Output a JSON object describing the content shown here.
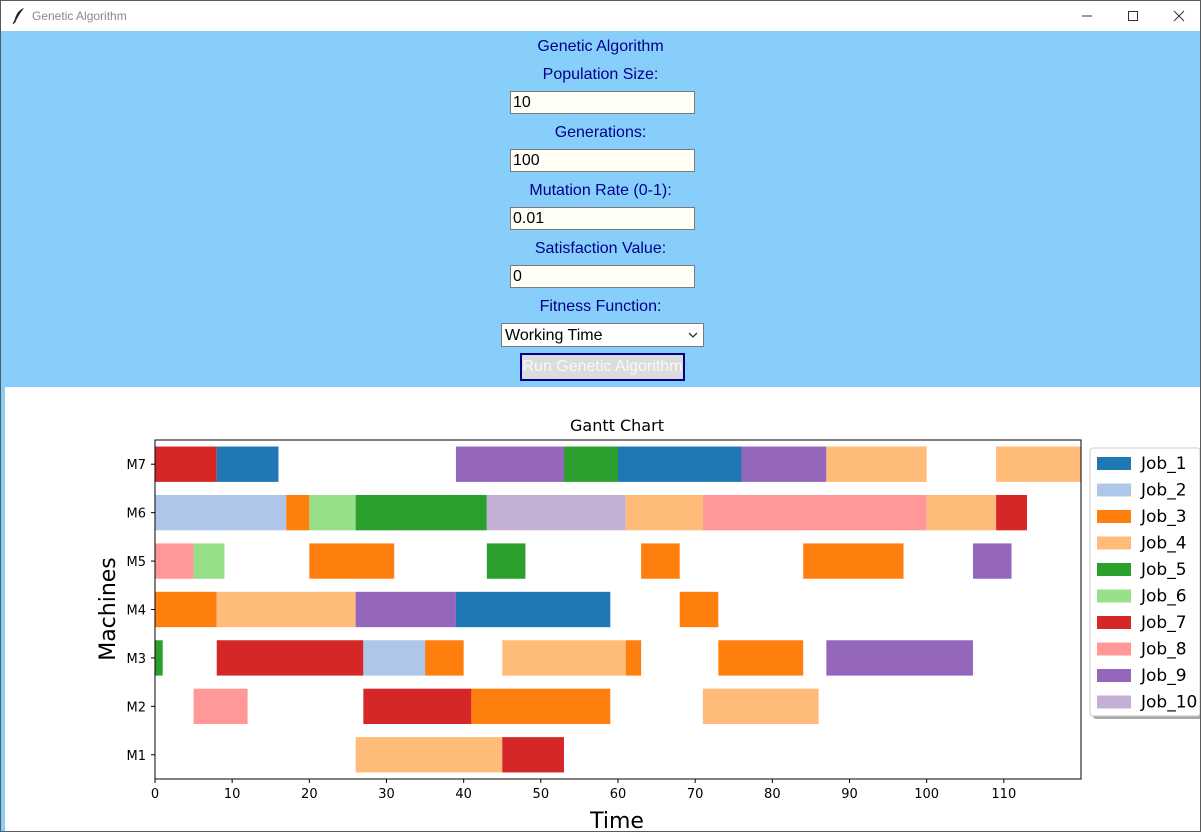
{
  "window": {
    "title": "Genetic Algorithm",
    "icon": "feather-icon"
  },
  "form": {
    "header": "Genetic Algorithm",
    "population_label": "Population Size:",
    "population_value": "10",
    "generations_label": "Generations:",
    "generations_value": "100",
    "mutation_label": "Mutation Rate (0-1):",
    "mutation_value": "0.01",
    "satisfaction_label": "Satisfaction Value:",
    "satisfaction_value": "0",
    "fitness_label": "Fitness Function:",
    "fitness_value": "Working Time",
    "run_label": "Run Genetic Algorithm",
    "background": "#87cefa",
    "label_color": "#00008b"
  },
  "chart_data": {
    "type": "gantt",
    "title": "Gantt Chart",
    "xlabel": "Time",
    "ylabel": "Machines",
    "xlim": [
      0,
      120
    ],
    "xticks": [
      0,
      10,
      20,
      30,
      40,
      50,
      60,
      70,
      80,
      90,
      100,
      110
    ],
    "machines": [
      "M1",
      "M2",
      "M3",
      "M4",
      "M5",
      "M6",
      "M7"
    ],
    "legend_position": "right",
    "jobs": [
      {
        "name": "Job_1",
        "color": "#1f77b4"
      },
      {
        "name": "Job_2",
        "color": "#aec7e8"
      },
      {
        "name": "Job_3",
        "color": "#ff7f0e"
      },
      {
        "name": "Job_4",
        "color": "#ffbb78"
      },
      {
        "name": "Job_5",
        "color": "#2ca02c"
      },
      {
        "name": "Job_6",
        "color": "#98df8a"
      },
      {
        "name": "Job_7",
        "color": "#d62728"
      },
      {
        "name": "Job_8",
        "color": "#ff9896"
      },
      {
        "name": "Job_9",
        "color": "#9467bd"
      },
      {
        "name": "Job_10",
        "color": "#c5b0d5"
      }
    ],
    "tasks": [
      {
        "machine": "M7",
        "job": "Job_7",
        "start": 0,
        "end": 8
      },
      {
        "machine": "M7",
        "job": "Job_1",
        "start": 8,
        "end": 16
      },
      {
        "machine": "M7",
        "job": "Job_9",
        "start": 39,
        "end": 53
      },
      {
        "machine": "M7",
        "job": "Job_5",
        "start": 53,
        "end": 60
      },
      {
        "machine": "M7",
        "job": "Job_1",
        "start": 60,
        "end": 76
      },
      {
        "machine": "M7",
        "job": "Job_9",
        "start": 76,
        "end": 87
      },
      {
        "machine": "M7",
        "job": "Job_4",
        "start": 87,
        "end": 100
      },
      {
        "machine": "M7",
        "job": "Job_4",
        "start": 109,
        "end": 120
      },
      {
        "machine": "M6",
        "job": "Job_2",
        "start": 0,
        "end": 17
      },
      {
        "machine": "M6",
        "job": "Job_3",
        "start": 17,
        "end": 20
      },
      {
        "machine": "M6",
        "job": "Job_6",
        "start": 20,
        "end": 26
      },
      {
        "machine": "M6",
        "job": "Job_5",
        "start": 26,
        "end": 43
      },
      {
        "machine": "M6",
        "job": "Job_10",
        "start": 43,
        "end": 61
      },
      {
        "machine": "M6",
        "job": "Job_4",
        "start": 61,
        "end": 71
      },
      {
        "machine": "M6",
        "job": "Job_8",
        "start": 71,
        "end": 100
      },
      {
        "machine": "M6",
        "job": "Job_4",
        "start": 100,
        "end": 109
      },
      {
        "machine": "M6",
        "job": "Job_7",
        "start": 109,
        "end": 113
      },
      {
        "machine": "M5",
        "job": "Job_8",
        "start": 0,
        "end": 5
      },
      {
        "machine": "M5",
        "job": "Job_6",
        "start": 5,
        "end": 9
      },
      {
        "machine": "M5",
        "job": "Job_3",
        "start": 20,
        "end": 31
      },
      {
        "machine": "M5",
        "job": "Job_5",
        "start": 43,
        "end": 48
      },
      {
        "machine": "M5",
        "job": "Job_3",
        "start": 63,
        "end": 68
      },
      {
        "machine": "M5",
        "job": "Job_3",
        "start": 84,
        "end": 97
      },
      {
        "machine": "M5",
        "job": "Job_9",
        "start": 106,
        "end": 111
      },
      {
        "machine": "M4",
        "job": "Job_3",
        "start": 0,
        "end": 8
      },
      {
        "machine": "M4",
        "job": "Job_4",
        "start": 8,
        "end": 26
      },
      {
        "machine": "M4",
        "job": "Job_9",
        "start": 26,
        "end": 39
      },
      {
        "machine": "M4",
        "job": "Job_1",
        "start": 39,
        "end": 59
      },
      {
        "machine": "M4",
        "job": "Job_3",
        "start": 68,
        "end": 73
      },
      {
        "machine": "M3",
        "job": "Job_5",
        "start": 0,
        "end": 1
      },
      {
        "machine": "M3",
        "job": "Job_7",
        "start": 8,
        "end": 27
      },
      {
        "machine": "M3",
        "job": "Job_2",
        "start": 27,
        "end": 35
      },
      {
        "machine": "M3",
        "job": "Job_3",
        "start": 35,
        "end": 40
      },
      {
        "machine": "M3",
        "job": "Job_4",
        "start": 45,
        "end": 61
      },
      {
        "machine": "M3",
        "job": "Job_3",
        "start": 61,
        "end": 63
      },
      {
        "machine": "M3",
        "job": "Job_3",
        "start": 73,
        "end": 84
      },
      {
        "machine": "M3",
        "job": "Job_9",
        "start": 87,
        "end": 106
      },
      {
        "machine": "M2",
        "job": "Job_8",
        "start": 5,
        "end": 12
      },
      {
        "machine": "M2",
        "job": "Job_7",
        "start": 27,
        "end": 41
      },
      {
        "machine": "M2",
        "job": "Job_3",
        "start": 41,
        "end": 59
      },
      {
        "machine": "M2",
        "job": "Job_4",
        "start": 71,
        "end": 86
      },
      {
        "machine": "M1",
        "job": "Job_4",
        "start": 26,
        "end": 45
      },
      {
        "machine": "M1",
        "job": "Job_7",
        "start": 45,
        "end": 53
      }
    ]
  }
}
